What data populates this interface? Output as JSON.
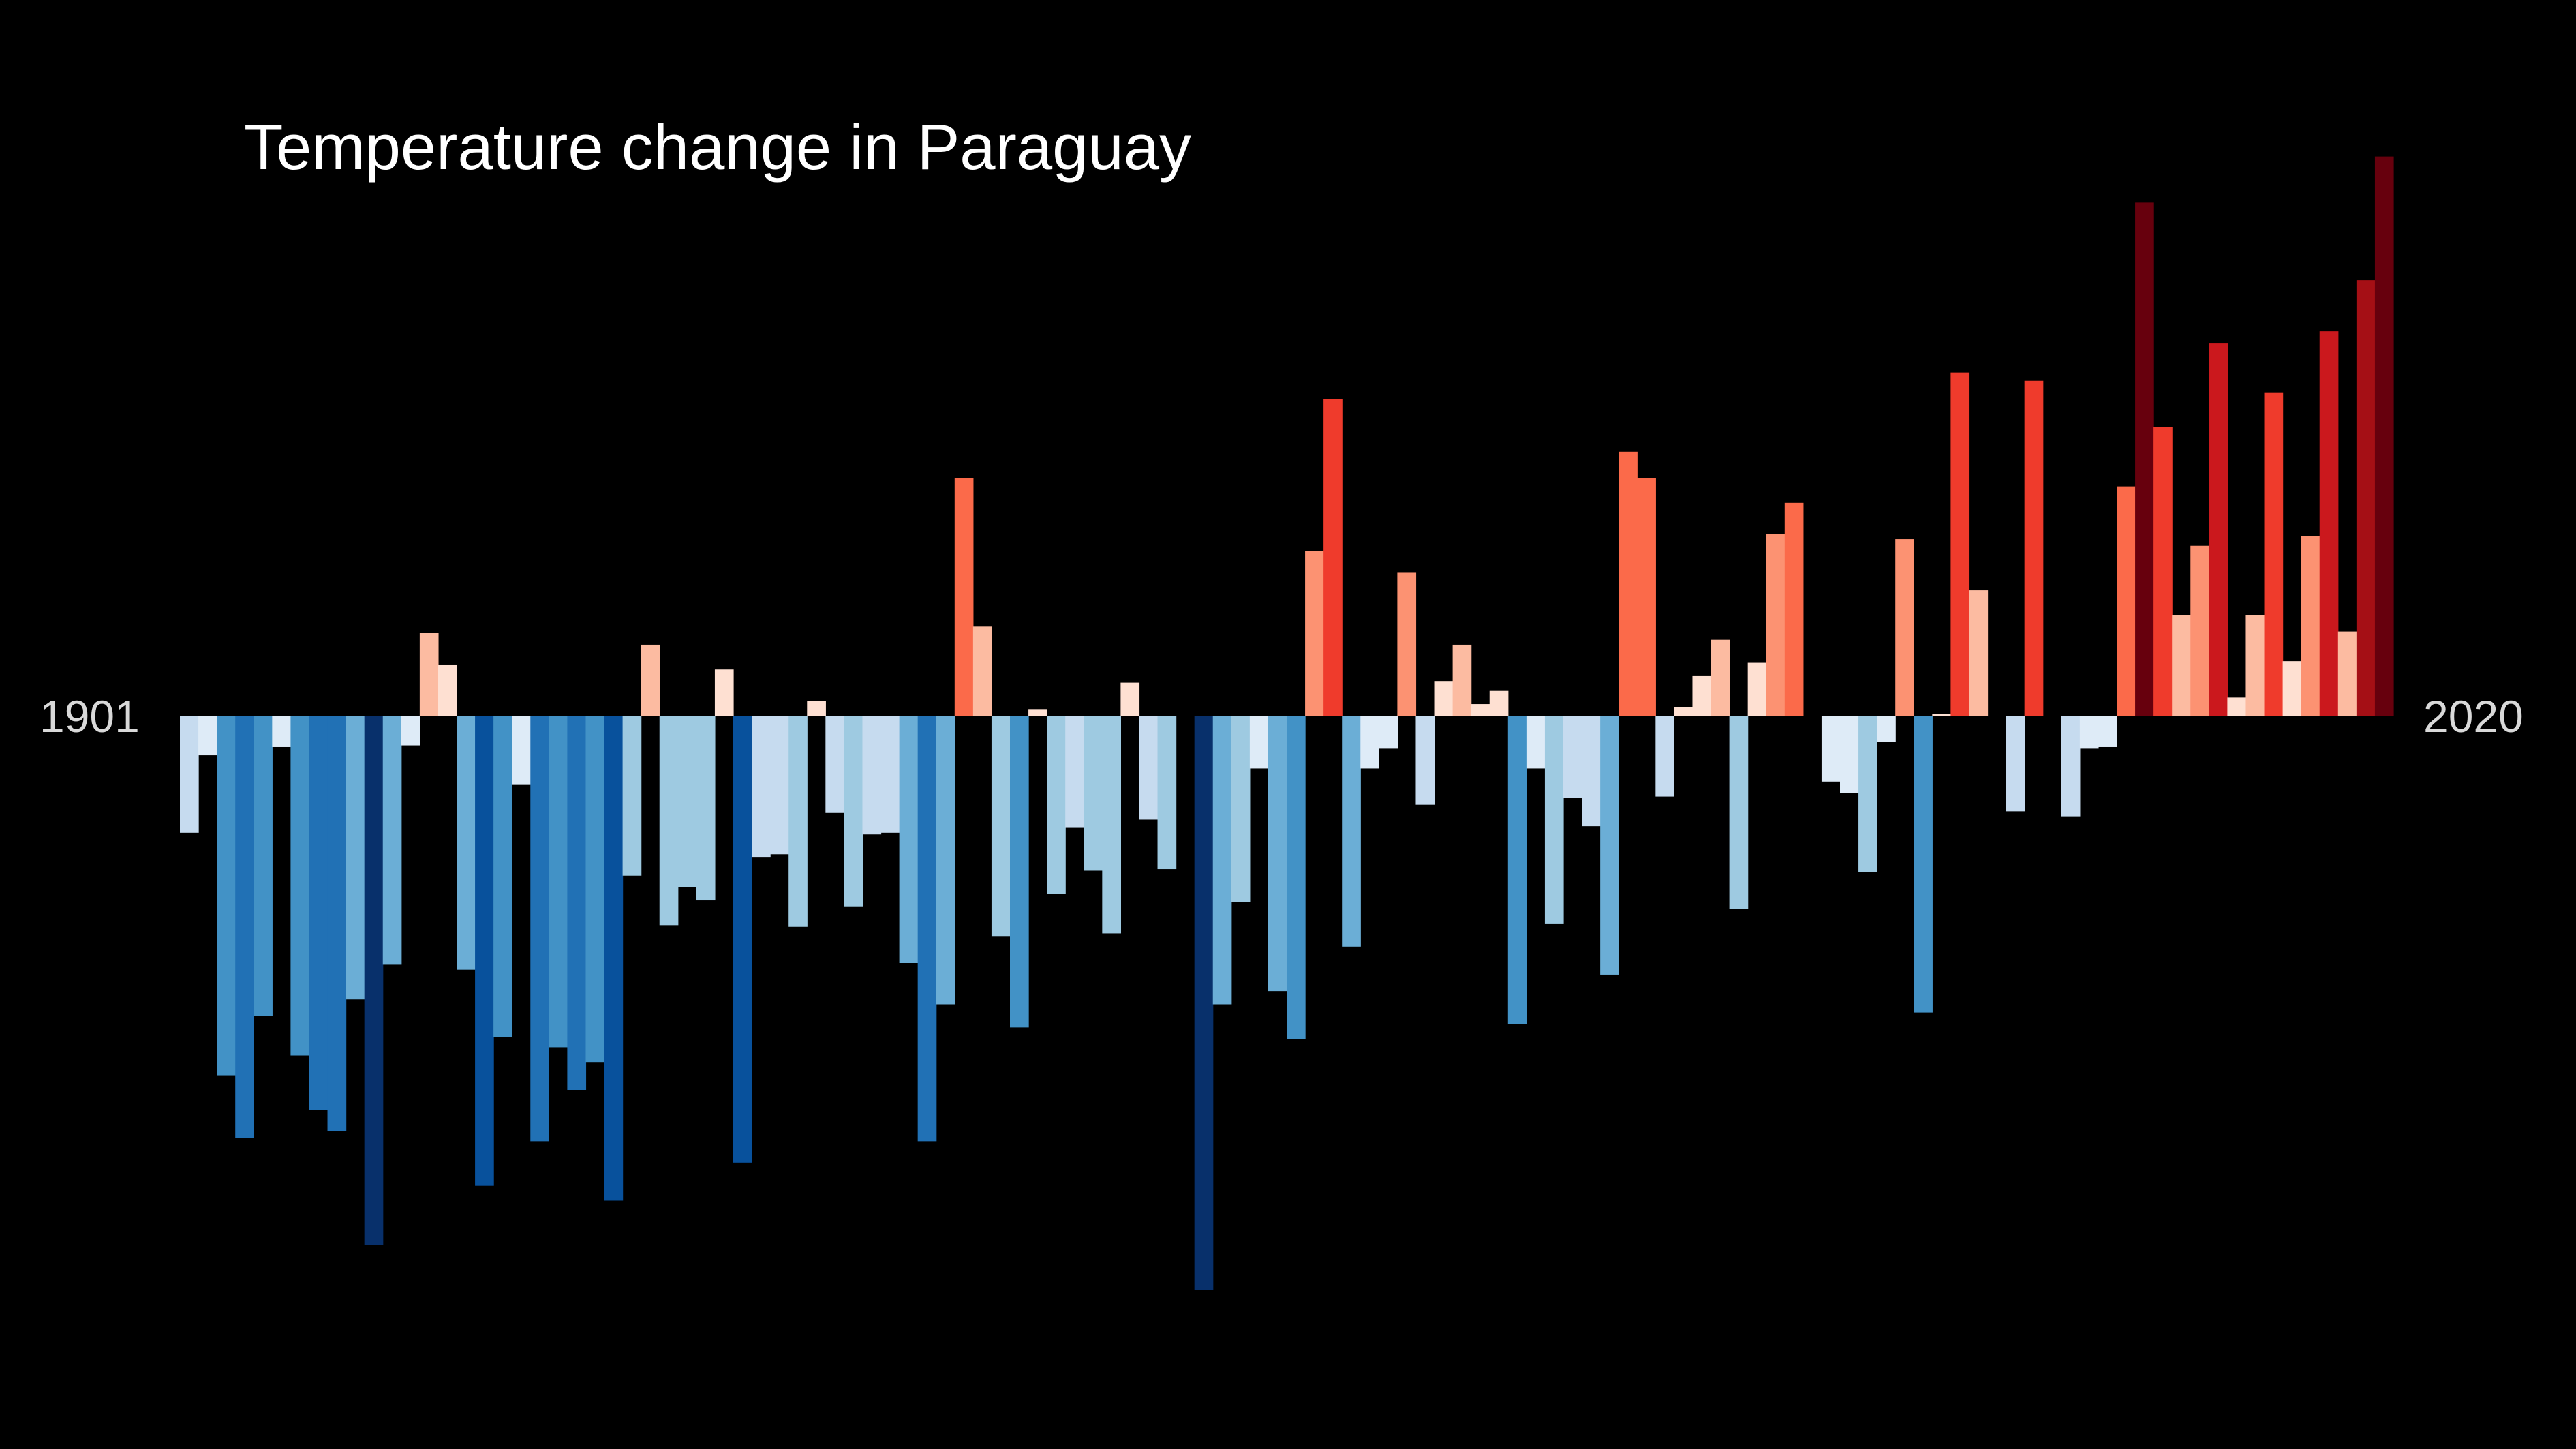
{
  "chart_data": {
    "type": "bar",
    "title": "Temperature change in Paraguay",
    "xlabel": "",
    "ylabel": "",
    "start_label": "1901",
    "end_label": "2020",
    "x_start": 1901,
    "x_end": 2020,
    "ylim": [
      -0.35,
      0.34
    ],
    "grid": false,
    "legend": "none",
    "background_color": "#000000",
    "text_color": "#ffffff",
    "colormap": "RdBu_r",
    "values": [
      -0.071,
      -0.024,
      -0.218,
      -0.256,
      -0.182,
      -0.019,
      -0.206,
      -0.239,
      -0.252,
      -0.172,
      -0.321,
      -0.151,
      -0.018,
      0.05,
      0.031,
      -0.154,
      -0.285,
      -0.195,
      -0.042,
      -0.258,
      -0.201,
      -0.227,
      -0.21,
      -0.294,
      -0.097,
      0.043,
      -0.127,
      -0.104,
      -0.112,
      0.028,
      -0.271,
      -0.086,
      -0.084,
      -0.128,
      0.009,
      -0.059,
      -0.116,
      -0.072,
      -0.071,
      -0.15,
      -0.258,
      -0.175,
      0.144,
      0.054,
      -0.134,
      -0.189,
      0.004,
      -0.108,
      -0.068,
      -0.094,
      -0.132,
      0.02,
      -0.063,
      -0.093,
      0.0,
      -0.348,
      -0.175,
      -0.113,
      -0.032,
      -0.167,
      -0.196,
      0.1,
      0.192,
      -0.14,
      -0.032,
      -0.02,
      0.087,
      -0.054,
      0.021,
      0.043,
      0.007,
      0.015,
      -0.187,
      -0.032,
      -0.126,
      -0.05,
      -0.067,
      -0.157,
      0.16,
      0.144,
      -0.049,
      0.005,
      0.024,
      0.046,
      -0.117,
      0.032,
      0.11,
      0.129,
      0.0,
      -0.04,
      -0.047,
      -0.095,
      -0.016,
      0.107,
      -0.18,
      0.001,
      0.208,
      0.076,
      0.0,
      -0.058,
      0.203,
      0.0,
      -0.061,
      -0.02,
      -0.019,
      0.139,
      0.311,
      0.175,
      0.061,
      0.103,
      0.226,
      0.011,
      0.061,
      0.196,
      0.033,
      0.109,
      0.233,
      0.051,
      0.264,
      0.339
    ]
  }
}
